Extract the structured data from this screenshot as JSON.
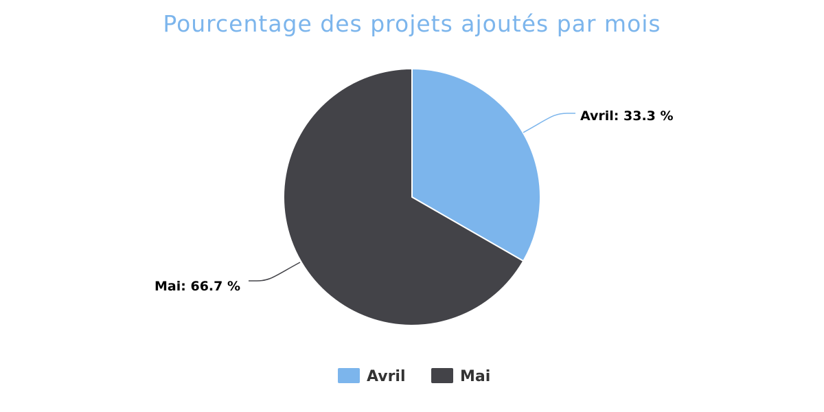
{
  "chart_data": {
    "type": "pie",
    "title": "Pourcentage des projets ajoutés par mois",
    "categories": [
      "Avril",
      "Mai"
    ],
    "values": [
      33.3,
      66.7
    ],
    "unit": "%",
    "colors": [
      "#7cb5ec",
      "#434348"
    ],
    "data_labels": [
      "Avril: 33.3 %",
      "Mai: 66.7 %"
    ],
    "legend_position": "bottom-center",
    "start_angle": 0
  },
  "theme": {
    "title_color": "#7cb5ec",
    "label_color": "#000000",
    "legend_text_color": "#333333",
    "slice_border_color": "#ffffff"
  }
}
